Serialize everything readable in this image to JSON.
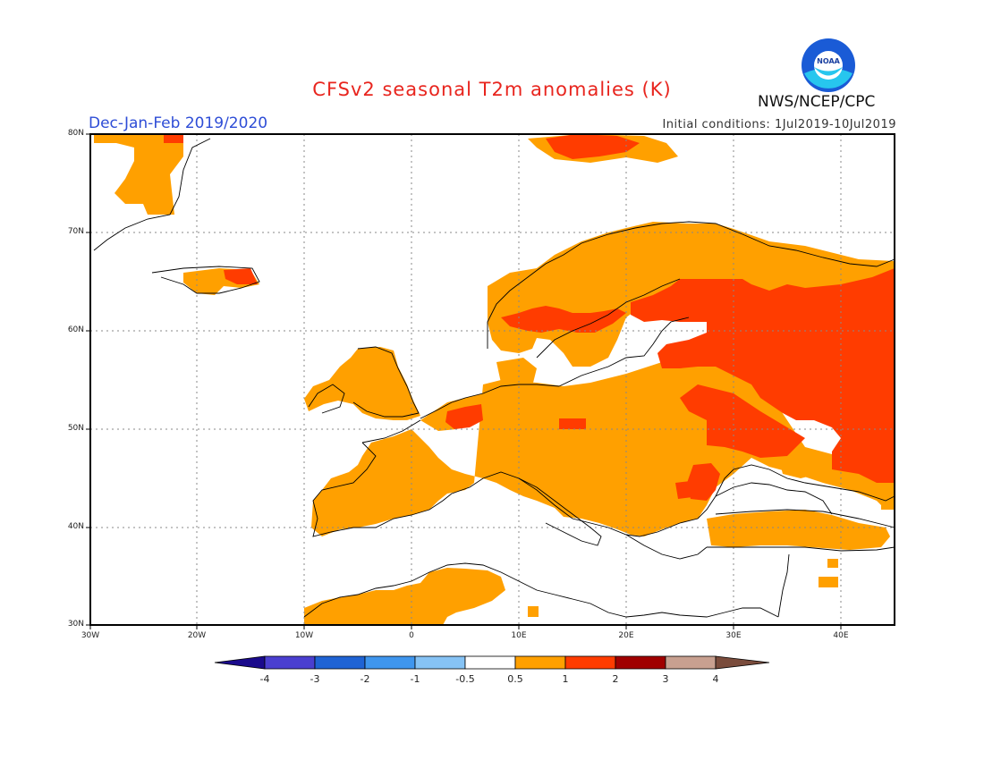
{
  "title": "CFSv2 seasonal T2m anomalies (K)",
  "period": "Dec-Jan-Feb 2019/2020",
  "initial_conditions": "Initial conditions: 1Jul2019-10Jul2019",
  "organization": "NWS/NCEP/CPC",
  "logo_text": "NOAA",
  "latitude_labels": [
    "80N",
    "70N",
    "60N",
    "50N",
    "40N",
    "30N"
  ],
  "longitude_labels": [
    "30W",
    "20W",
    "10W",
    "0",
    "10E",
    "20E",
    "30E",
    "40E"
  ],
  "colorbar": {
    "labels": [
      "-4",
      "-3",
      "-2",
      "-1",
      "-0.5",
      "0.5",
      "1",
      "2",
      "3",
      "4"
    ],
    "bins": [
      {
        "range": "<-4",
        "color": "#1a0a8c"
      },
      {
        "range": "-4 to -3",
        "color": "#4a3fd0"
      },
      {
        "range": "-3 to -2",
        "color": "#1f63d4"
      },
      {
        "range": "-2 to -1",
        "color": "#3f96ee"
      },
      {
        "range": "-1 to -0.5",
        "color": "#86c3f5"
      },
      {
        "range": "-0.5 to 0.5",
        "color": "#ffffff"
      },
      {
        "range": "0.5 to 1",
        "color": "#ffa000"
      },
      {
        "range": "1 to 2",
        "color": "#ff3c00"
      },
      {
        "range": "2 to 3",
        "color": "#a00000"
      },
      {
        "range": "3 to 4",
        "color": "#c8a090"
      },
      {
        "range": ">4",
        "color": "#7a4c3c"
      }
    ]
  },
  "anomaly_regions": [
    {
      "name": "Russia / Eastern Europe",
      "category": "1 to 2",
      "color": "#ff3c00"
    },
    {
      "name": "Central and Western Europe",
      "category": "0.5 to 1",
      "color": "#ffa000"
    },
    {
      "name": "Scandinavia",
      "category": "0.5 to 1",
      "color": "#ffa000"
    },
    {
      "name": "Mediterranean",
      "category": "-0.5 to 0.5",
      "color": "#ffffff"
    }
  ]
}
